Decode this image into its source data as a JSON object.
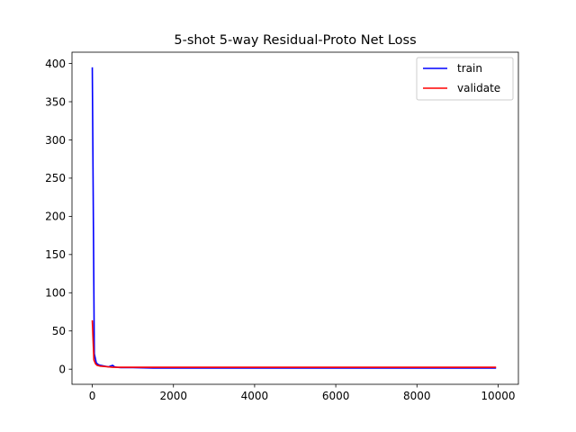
{
  "chart_data": {
    "type": "line",
    "title": "5-shot 5-way Residual-Proto Net Loss",
    "xlabel": "",
    "ylabel": "",
    "xlim": [
      -500,
      10500
    ],
    "ylim": [
      -19.8,
      414.8
    ],
    "x_ticks": [
      0,
      2000,
      4000,
      6000,
      8000,
      10000
    ],
    "y_ticks": [
      0,
      50,
      100,
      150,
      200,
      250,
      300,
      350,
      400
    ],
    "grid": false,
    "legend_position": "top-right",
    "colors": {
      "train": "#0000ff",
      "validate": "#ff0000",
      "axis": "#000000"
    },
    "series": [
      {
        "name": "train",
        "x": [
          0,
          50,
          100,
          150,
          200,
          300,
          400,
          450,
          500,
          550,
          600,
          700,
          800,
          1000,
          1500,
          2000,
          2500,
          3000,
          3500,
          4000,
          4500,
          5000,
          5500,
          6000,
          6500,
          7000,
          7500,
          8000,
          8500,
          9000,
          9500,
          9950
        ],
        "y": [
          395,
          20,
          8,
          6,
          5,
          4,
          3,
          4,
          5,
          3,
          2.5,
          2,
          2,
          2,
          1.5,
          1.5,
          1.5,
          1.5,
          1.5,
          1.5,
          1.5,
          1.5,
          1.5,
          1.5,
          1.5,
          1.5,
          1.5,
          1.5,
          1.5,
          1.5,
          1.5,
          1.5
        ]
      },
      {
        "name": "validate",
        "x": [
          0,
          40,
          80,
          120,
          200,
          300,
          400,
          500,
          600,
          800,
          1000,
          1500,
          2000,
          2500,
          3000,
          3500,
          4000,
          4500,
          5000,
          5500,
          6000,
          6500,
          7000,
          7500,
          8000,
          8500,
          9000,
          9500,
          9950
        ],
        "y": [
          64,
          12,
          7,
          5,
          4,
          3.5,
          3,
          2.5,
          2.5,
          2.5,
          2.5,
          2.5,
          2.5,
          2.5,
          2.5,
          2.5,
          2.5,
          2.5,
          2.5,
          2.5,
          2.5,
          2.5,
          2.5,
          2.5,
          2.5,
          2.5,
          2.5,
          2.5,
          2.5
        ]
      }
    ]
  }
}
